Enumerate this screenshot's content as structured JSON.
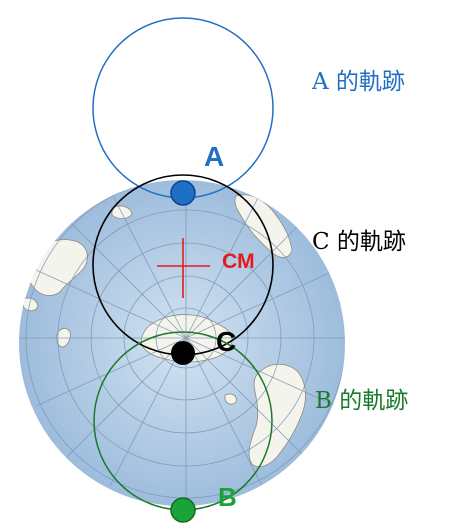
{
  "diagram": {
    "points": [
      {
        "id": "A",
        "label": "A",
        "color": "#1f6fc4"
      },
      {
        "id": "B",
        "label": "B",
        "color": "#1aa33a"
      },
      {
        "id": "C",
        "label": "C",
        "color": "#000000"
      }
    ],
    "center_of_mass": {
      "label": "CM",
      "color": "#e51b1b"
    },
    "trajectories": [
      {
        "id": "A",
        "label": "A 的軌跡",
        "color": "#1f6fc4"
      },
      {
        "id": "C",
        "label": "C 的軌跡",
        "color": "#000000"
      },
      {
        "id": "B",
        "label": "B 的軌跡",
        "color": "#1a7a2a"
      }
    ],
    "background": {
      "name": "south-polar-globe",
      "ocean_color": "#b8d2ea",
      "land_color": "#f4f3ec",
      "grid_color": "#7a94b0"
    }
  }
}
